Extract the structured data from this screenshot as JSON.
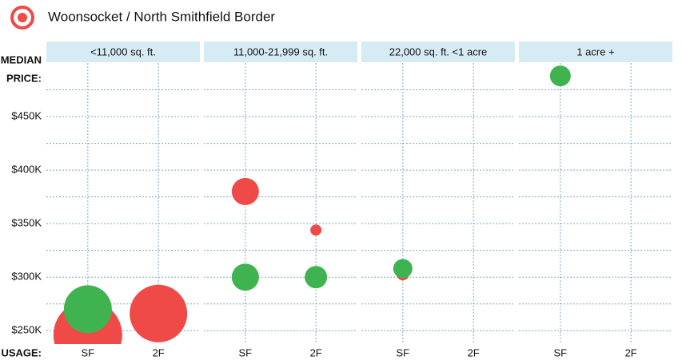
{
  "chart_data": {
    "type": "bubble",
    "title": "Woonsocket / North Smithfield Border",
    "y_label": [
      "MEDIAN",
      "PRICE:"
    ],
    "x_label": "USAGE:",
    "panels": [
      "<11,000 sq. ft.",
      "11,000-21,999 sq. ft.",
      "22,000 sq. ft. <1 acre",
      "1 acre +"
    ],
    "categories": [
      "SF",
      "2F"
    ],
    "ylim": [
      237.5,
      500
    ],
    "yticks": [
      {
        "value": 250,
        "label": "$250K"
      },
      {
        "value": 300,
        "label": "$300K"
      },
      {
        "value": 350,
        "label": "$350K"
      },
      {
        "value": 400,
        "label": "$400K"
      },
      {
        "value": 450,
        "label": "$450K"
      }
    ],
    "minor_yticks": [
      275,
      325,
      375,
      425,
      475
    ],
    "grid": true,
    "series": [
      {
        "color": "#ef4a48",
        "values": [
          [
            246,
            266
          ],
          [
            380,
            344
          ],
          [
            303,
            null
          ],
          [
            null,
            null
          ]
        ],
        "sizes": [
          [
            43,
            36
          ],
          [
            17,
            7
          ],
          [
            8,
            null
          ],
          [
            null,
            null
          ]
        ]
      },
      {
        "color": "#3fb34f",
        "values": [
          [
            270,
            null
          ],
          [
            300,
            300
          ],
          [
            308,
            null
          ],
          [
            488,
            null
          ]
        ],
        "sizes": [
          [
            30,
            null
          ],
          [
            17,
            14
          ],
          [
            12,
            null
          ],
          [
            13,
            null
          ]
        ]
      }
    ]
  }
}
